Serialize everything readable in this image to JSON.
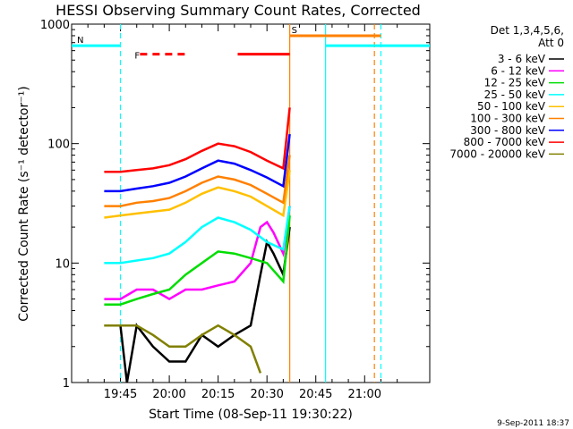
{
  "chart_data": {
    "type": "line",
    "title": "HESSI Observing Summary Count Rates, Corrected",
    "xlabel": "Start Time (08-Sep-11 19:30:22)",
    "ylabel": "Corrected Count Rate (s⁻¹ detector⁻¹)",
    "ylim": [
      1,
      1000
    ],
    "yscale": "log",
    "xlim_min": [
      30,
      140
    ],
    "x_ticks": [
      {
        "min": 45,
        "label": "19:45"
      },
      {
        "min": 60,
        "label": "20:00"
      },
      {
        "min": 75,
        "label": "20:15"
      },
      {
        "min": 90,
        "label": "20:30"
      },
      {
        "min": 105,
        "label": "20:45"
      },
      {
        "min": 120,
        "label": "21:00"
      }
    ],
    "y_ticks": [
      {
        "value": 1,
        "label": "1"
      },
      {
        "value": 10,
        "label": "10"
      },
      {
        "value": 100,
        "label": "100"
      },
      {
        "value": 1000,
        "label": "1000"
      }
    ],
    "legend": {
      "position": "top-right",
      "header": [
        "Det 1,3,4,5,6,",
        "Att 0"
      ]
    },
    "series": [
      {
        "name": "3 - 6 keV",
        "color": "#000000",
        "x": [
          40,
          45,
          47,
          50,
          55,
          60,
          65,
          70,
          75,
          80,
          85,
          88,
          90,
          92,
          95,
          97
        ],
        "y": [
          3,
          3,
          1,
          3,
          2,
          1.5,
          1.5,
          2.5,
          2,
          2.5,
          3,
          8,
          15,
          12,
          8,
          20
        ]
      },
      {
        "name": "6 - 12 keV",
        "color": "#ff00ff",
        "x": [
          40,
          45,
          50,
          55,
          60,
          65,
          70,
          75,
          80,
          85,
          88,
          90,
          92,
          95,
          97
        ],
        "y": [
          5,
          5,
          6,
          6,
          5,
          6,
          6,
          6.5,
          7,
          10,
          20,
          22,
          18,
          12,
          30
        ]
      },
      {
        "name": "12 - 25 keV",
        "color": "#00dd00",
        "x": [
          40,
          45,
          50,
          55,
          60,
          65,
          70,
          75,
          80,
          85,
          90,
          95,
          97
        ],
        "y": [
          4.5,
          4.5,
          5,
          5.5,
          6,
          8,
          10,
          12.5,
          12,
          11,
          10,
          7,
          25
        ]
      },
      {
        "name": "25 - 50 keV",
        "color": "#00ffff",
        "x": [
          40,
          45,
          50,
          55,
          60,
          65,
          70,
          75,
          80,
          85,
          90,
          95,
          97
        ],
        "y": [
          10,
          10,
          10.5,
          11,
          12,
          15,
          20,
          24,
          22,
          19,
          15,
          13,
          30
        ]
      },
      {
        "name": "50 - 100 keV",
        "color": "#ffc000",
        "x": [
          40,
          45,
          50,
          55,
          60,
          65,
          70,
          75,
          80,
          85,
          90,
          95,
          97
        ],
        "y": [
          24,
          25,
          26,
          27,
          28,
          32,
          38,
          43,
          40,
          36,
          30,
          25,
          60
        ]
      },
      {
        "name": "100 - 300 keV",
        "color": "#ff8000",
        "x": [
          40,
          45,
          50,
          55,
          60,
          65,
          70,
          75,
          80,
          85,
          90,
          95,
          97
        ],
        "y": [
          30,
          30,
          32,
          33,
          35,
          40,
          47,
          53,
          50,
          45,
          38,
          32,
          80
        ]
      },
      {
        "name": "300 - 800 keV",
        "color": "#0000ff",
        "x": [
          40,
          45,
          50,
          55,
          60,
          65,
          70,
          75,
          80,
          85,
          90,
          95,
          97
        ],
        "y": [
          40,
          40,
          42,
          44,
          47,
          53,
          62,
          72,
          68,
          60,
          52,
          44,
          120
        ]
      },
      {
        "name": "800 - 7000 keV",
        "color": "#ff0000",
        "x": [
          40,
          45,
          50,
          55,
          60,
          65,
          70,
          75,
          80,
          85,
          90,
          95,
          97
        ],
        "y": [
          58,
          58,
          60,
          62,
          66,
          74,
          87,
          100,
          95,
          85,
          72,
          62,
          200
        ]
      },
      {
        "name": "7000 - 20000 keV",
        "color": "#808000",
        "x": [
          40,
          45,
          50,
          55,
          60,
          65,
          70,
          75,
          80,
          85,
          88
        ],
        "y": [
          3,
          3,
          3,
          2.5,
          2,
          2,
          2.5,
          3,
          2.5,
          2,
          1.2
        ]
      }
    ],
    "flags": [
      {
        "label": "N",
        "color": "#00ffff",
        "x_start": 30,
        "x_end": 45,
        "value": 660
      },
      {
        "label": "F",
        "color": "#ff0000",
        "x_start": 51,
        "x_end": 66,
        "value": 560,
        "dashed": true
      },
      {
        "label": "",
        "color": "#ff0000",
        "x_start": 81,
        "x_end": 97,
        "value": 560,
        "dashed": false
      },
      {
        "label": "S",
        "color": "#ff8000",
        "x_start": 97,
        "x_end": 125,
        "value": 800
      },
      {
        "label": "",
        "color": "#00ffff",
        "x_start": 108,
        "x_end": 140,
        "value": 660
      }
    ],
    "vertical_lines": [
      {
        "x": 45,
        "color": "#00ffff",
        "dashed": true
      },
      {
        "x": 97,
        "color": "#ff8000",
        "dashed": false
      },
      {
        "x": 108,
        "color": "#00ffff",
        "dashed": false
      },
      {
        "x": 123,
        "color": "#ff8000",
        "dashed": true
      },
      {
        "x": 125,
        "color": "#00ffff",
        "dashed": true
      }
    ]
  },
  "footer": {
    "timestamp": "9-Sep-2011 18:37"
  }
}
